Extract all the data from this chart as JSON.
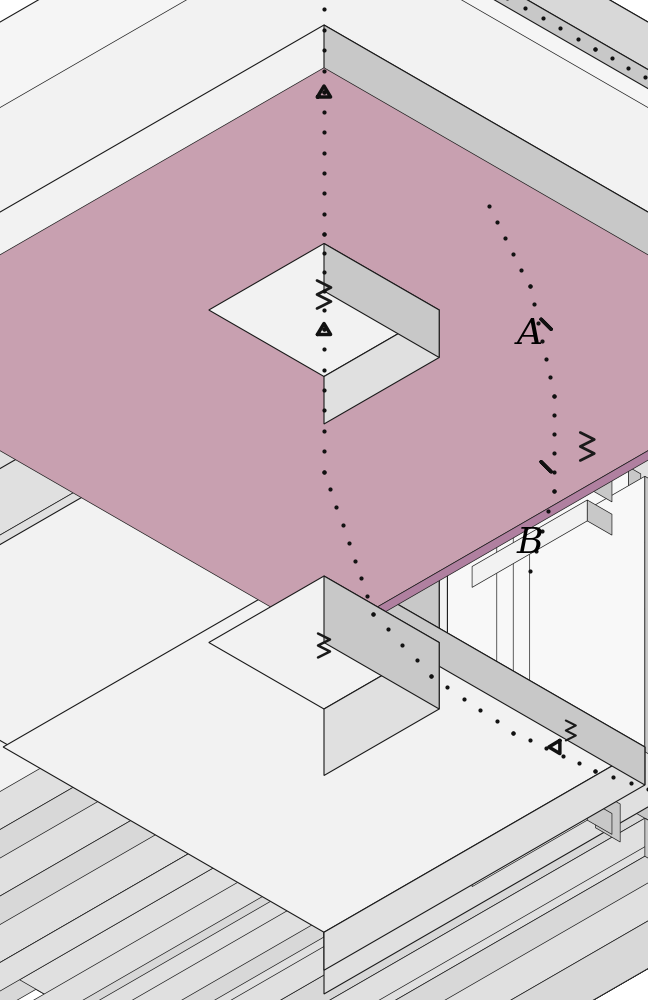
{
  "bg_color": "#ffffff",
  "lc": "#1a1a1a",
  "lw": 0.8,
  "tlw": 0.5,
  "fig_width": 6.48,
  "fig_height": 10.0,
  "label_A": "A",
  "label_B": "B",
  "pink_color": "#c8a0b0",
  "dot_color": "#111111",
  "face_top": "#f2f2f2",
  "face_right": "#d8d8d8",
  "face_front": "#e8e8e8",
  "face_dark": "#c8c8c8",
  "face_mid": "#e0e0e0",
  "face_light": "#f8f8f8"
}
